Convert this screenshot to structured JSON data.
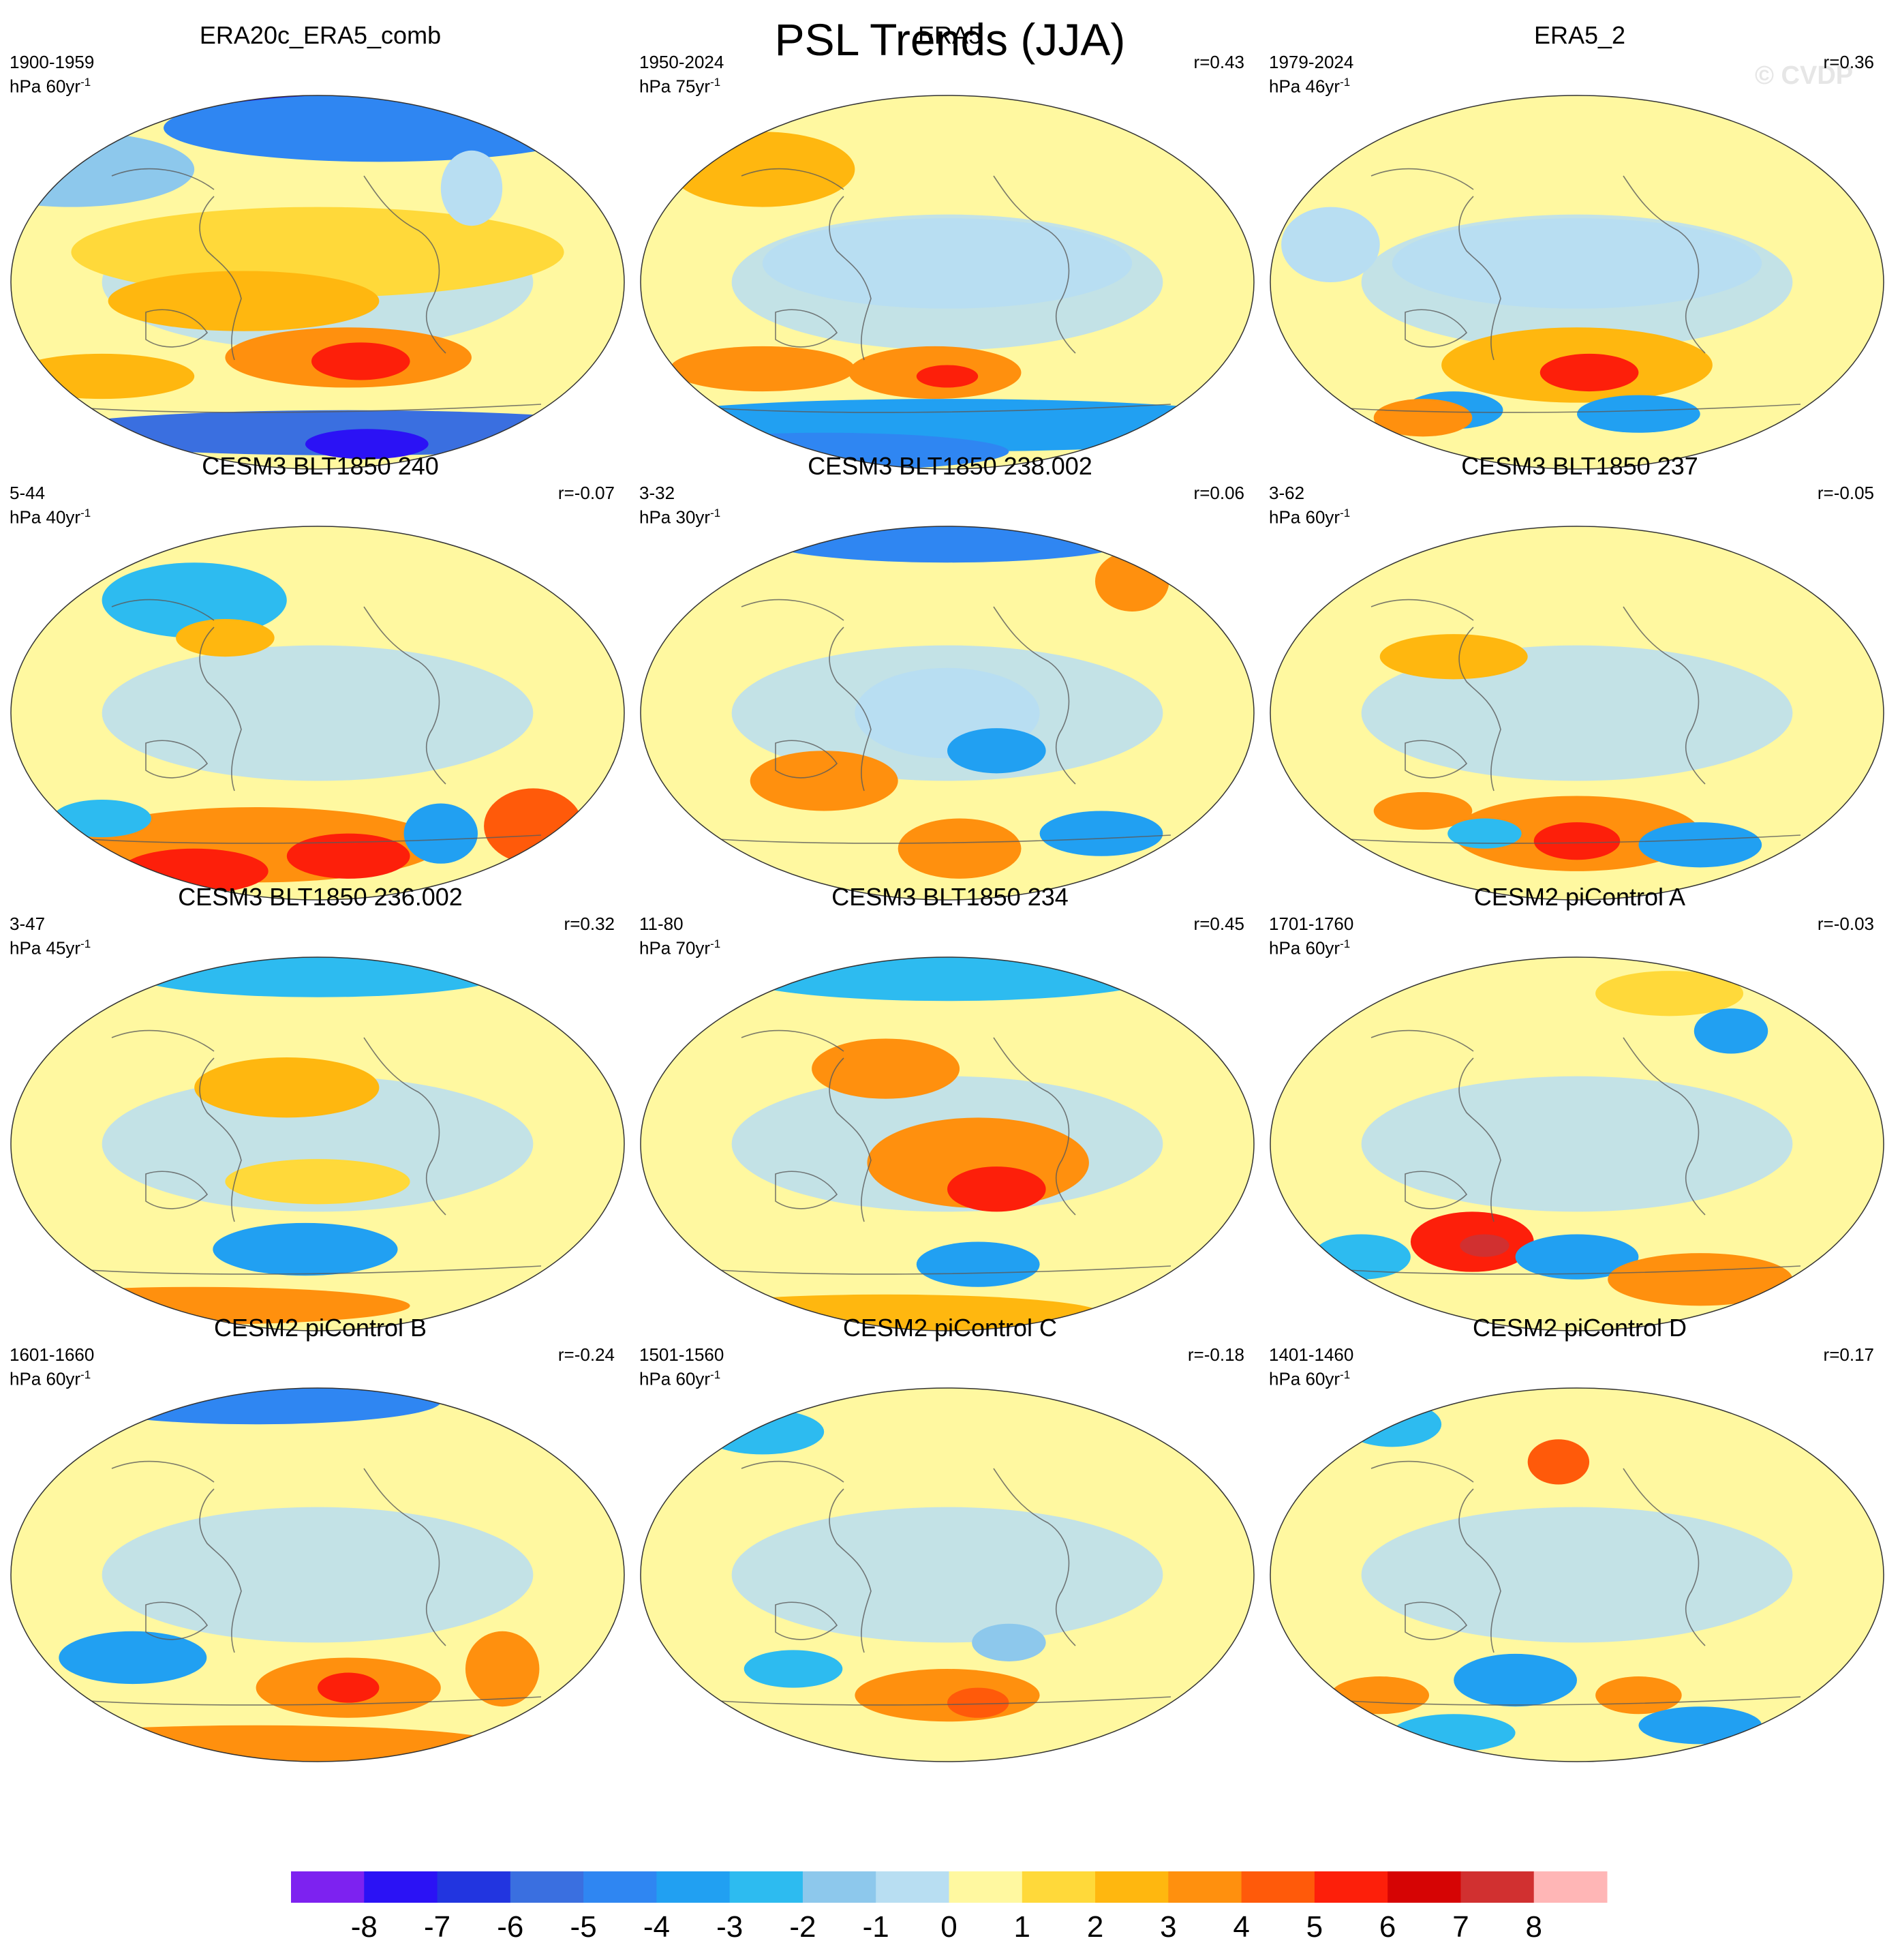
{
  "figure": {
    "title": "PSL Trends (JJA)",
    "watermark": "© CVDP"
  },
  "colorbar": {
    "tick_labels": [
      "-8",
      "-7",
      "-6",
      "-5",
      "-4",
      "-3",
      "-2",
      "-1",
      "0",
      "1",
      "2",
      "3",
      "4",
      "5",
      "6",
      "7",
      "8"
    ],
    "colors": [
      "#7d22f0",
      "#2b12f5",
      "#2235e0",
      "#3a6fe0",
      "#2f86f2",
      "#21a0f2",
      "#2dbbf0",
      "#8dc8ec",
      "#b8def2",
      "#fff8a0",
      "#ffd93a",
      "#ffb70f",
      "#ff900e",
      "#ff5a0a",
      "#fd1f0a",
      "#d60404",
      "#d13030",
      "#ffb6b6"
    ]
  },
  "chart_data": [
    {
      "type": "heatmap",
      "map": "global-trend",
      "title": "ERA20c_ERA5_comb",
      "period": "1900-1959",
      "units_label": "hPa 60yr",
      "corr": "",
      "blobs": [
        [
          0.55,
          0.04,
          0.22,
          0.07,
          -8
        ],
        [
          0.6,
          0.09,
          0.35,
          0.09,
          -5
        ],
        [
          0.1,
          0.2,
          0.2,
          0.1,
          -2
        ],
        [
          0.5,
          0.42,
          0.4,
          0.12,
          1
        ],
        [
          0.38,
          0.55,
          0.22,
          0.08,
          2
        ],
        [
          0.55,
          0.7,
          0.2,
          0.08,
          3
        ],
        [
          0.57,
          0.71,
          0.08,
          0.05,
          5
        ],
        [
          0.15,
          0.75,
          0.15,
          0.06,
          2
        ],
        [
          0.55,
          0.9,
          0.5,
          0.06,
          -6
        ],
        [
          0.58,
          0.93,
          0.1,
          0.04,
          -8
        ],
        [
          0.75,
          0.25,
          0.05,
          0.1,
          -1
        ]
      ]
    },
    {
      "type": "heatmap",
      "map": "global-trend",
      "title": "ERA5",
      "period": "1950-2024",
      "units_label": "hPa 75yr",
      "corr": "r=0.43",
      "blobs": [
        [
          0.2,
          0.2,
          0.15,
          0.1,
          2
        ],
        [
          0.5,
          0.45,
          0.3,
          0.12,
          -1
        ],
        [
          0.2,
          0.73,
          0.15,
          0.06,
          3
        ],
        [
          0.48,
          0.74,
          0.14,
          0.07,
          3
        ],
        [
          0.5,
          0.75,
          0.05,
          0.03,
          5
        ],
        [
          0.5,
          0.88,
          0.55,
          0.07,
          -4
        ],
        [
          0.3,
          0.95,
          0.3,
          0.05,
          -5
        ]
      ]
    },
    {
      "type": "heatmap",
      "map": "global-trend",
      "title": "ERA5_2",
      "period": "1979-2024",
      "units_label": "hPa 46yr",
      "corr": "r=0.36",
      "blobs": [
        [
          0.5,
          0.45,
          0.3,
          0.12,
          -1
        ],
        [
          0.5,
          0.72,
          0.22,
          0.1,
          2
        ],
        [
          0.52,
          0.74,
          0.08,
          0.05,
          5
        ],
        [
          0.3,
          0.84,
          0.08,
          0.05,
          -4
        ],
        [
          0.6,
          0.85,
          0.1,
          0.05,
          -4
        ],
        [
          0.25,
          0.86,
          0.08,
          0.05,
          3
        ],
        [
          0.1,
          0.4,
          0.08,
          0.1,
          -1
        ]
      ]
    },
    {
      "type": "heatmap",
      "map": "global-trend",
      "title": "CESM3 BLT1850 240",
      "period": "5-44",
      "units_label": "hPa 40yr",
      "corr": "r=-0.07",
      "blobs": [
        [
          0.3,
          0.2,
          0.15,
          0.1,
          -3
        ],
        [
          0.35,
          0.3,
          0.08,
          0.05,
          2
        ],
        [
          0.4,
          0.85,
          0.3,
          0.1,
          3
        ],
        [
          0.3,
          0.92,
          0.12,
          0.06,
          5
        ],
        [
          0.55,
          0.88,
          0.1,
          0.06,
          5
        ],
        [
          0.7,
          0.82,
          0.06,
          0.08,
          -4
        ],
        [
          0.85,
          0.8,
          0.08,
          0.1,
          4
        ],
        [
          0.15,
          0.78,
          0.08,
          0.05,
          -3
        ]
      ]
    },
    {
      "type": "heatmap",
      "map": "global-trend",
      "title": "CESM3 BLT1850 238.002",
      "period": "3-32",
      "units_label": "hPa 30yr",
      "corr": "r=0.06",
      "blobs": [
        [
          0.5,
          0.04,
          0.3,
          0.06,
          -5
        ],
        [
          0.8,
          0.15,
          0.06,
          0.08,
          3
        ],
        [
          0.5,
          0.5,
          0.15,
          0.12,
          -1
        ],
        [
          0.58,
          0.6,
          0.08,
          0.06,
          -4
        ],
        [
          0.3,
          0.68,
          0.12,
          0.08,
          3
        ],
        [
          0.52,
          0.86,
          0.1,
          0.08,
          3
        ],
        [
          0.75,
          0.82,
          0.1,
          0.06,
          -4
        ]
      ]
    },
    {
      "type": "heatmap",
      "map": "global-trend",
      "title": "CESM3 BLT1850 237",
      "period": "3-62",
      "units_label": "hPa 60yr",
      "corr": "r=-0.05",
      "blobs": [
        [
          0.3,
          0.35,
          0.12,
          0.06,
          2
        ],
        [
          0.5,
          0.82,
          0.2,
          0.1,
          3
        ],
        [
          0.5,
          0.84,
          0.07,
          0.05,
          5
        ],
        [
          0.7,
          0.85,
          0.1,
          0.06,
          -4
        ],
        [
          0.25,
          0.76,
          0.08,
          0.05,
          3
        ],
        [
          0.35,
          0.82,
          0.06,
          0.04,
          -3
        ]
      ]
    },
    {
      "type": "heatmap",
      "map": "global-trend",
      "title": "CESM3 BLT1850 236.002",
      "period": "3-47",
      "units_label": "hPa 45yr",
      "corr": "r=0.32",
      "blobs": [
        [
          0.5,
          0.05,
          0.3,
          0.06,
          -3
        ],
        [
          0.45,
          0.35,
          0.15,
          0.08,
          2
        ],
        [
          0.48,
          0.78,
          0.15,
          0.07,
          -4
        ],
        [
          0.3,
          0.93,
          0.35,
          0.05,
          3
        ],
        [
          0.5,
          0.6,
          0.15,
          0.06,
          1
        ]
      ]
    },
    {
      "type": "heatmap",
      "map": "global-trend",
      "title": "CESM3 BLT1850 234",
      "period": "11-80",
      "units_label": "hPa 70yr",
      "corr": "r=0.45",
      "blobs": [
        [
          0.5,
          0.05,
          0.35,
          0.07,
          -3
        ],
        [
          0.4,
          0.3,
          0.12,
          0.08,
          3
        ],
        [
          0.55,
          0.55,
          0.18,
          0.12,
          3
        ],
        [
          0.58,
          0.62,
          0.08,
          0.06,
          5
        ],
        [
          0.55,
          0.82,
          0.1,
          0.06,
          -4
        ],
        [
          0.4,
          0.95,
          0.35,
          0.05,
          2
        ]
      ]
    },
    {
      "type": "heatmap",
      "map": "global-trend",
      "title": "CESM2 piControl A",
      "period": "1701-1760",
      "units_label": "hPa 60yr",
      "corr": "r=-0.03",
      "blobs": [
        [
          0.65,
          0.1,
          0.12,
          0.06,
          1
        ],
        [
          0.75,
          0.2,
          0.06,
          0.06,
          -4
        ],
        [
          0.33,
          0.76,
          0.1,
          0.08,
          5
        ],
        [
          0.35,
          0.77,
          0.04,
          0.03,
          7
        ],
        [
          0.5,
          0.8,
          0.1,
          0.06,
          -4
        ],
        [
          0.7,
          0.86,
          0.15,
          0.07,
          3
        ],
        [
          0.15,
          0.8,
          0.08,
          0.06,
          -3
        ]
      ]
    },
    {
      "type": "heatmap",
      "map": "global-trend",
      "title": "CESM2 piControl B",
      "period": "1601-1660",
      "units_label": "hPa 60yr",
      "corr": "r=-0.24",
      "blobs": [
        [
          0.4,
          0.04,
          0.3,
          0.06,
          -5
        ],
        [
          0.2,
          0.72,
          0.12,
          0.07,
          -4
        ],
        [
          0.55,
          0.8,
          0.15,
          0.08,
          3
        ],
        [
          0.55,
          0.8,
          0.05,
          0.04,
          5
        ],
        [
          0.8,
          0.75,
          0.06,
          0.1,
          3
        ],
        [
          0.4,
          0.95,
          0.4,
          0.05,
          3
        ]
      ]
    },
    {
      "type": "heatmap",
      "map": "global-trend",
      "title": "CESM2 piControl C",
      "period": "1501-1560",
      "units_label": "hPa 60yr",
      "corr": "r=-0.18",
      "blobs": [
        [
          0.2,
          0.12,
          0.1,
          0.06,
          -3
        ],
        [
          0.5,
          0.82,
          0.15,
          0.07,
          3
        ],
        [
          0.55,
          0.84,
          0.05,
          0.04,
          4
        ],
        [
          0.25,
          0.75,
          0.08,
          0.05,
          -3
        ],
        [
          0.6,
          0.68,
          0.06,
          0.05,
          -2
        ]
      ]
    },
    {
      "type": "heatmap",
      "map": "global-trend",
      "title": "CESM2 piControl D",
      "period": "1401-1460",
      "units_label": "hPa 60yr",
      "corr": "r=0.17",
      "blobs": [
        [
          0.2,
          0.1,
          0.08,
          0.06,
          -3
        ],
        [
          0.47,
          0.2,
          0.05,
          0.06,
          4
        ],
        [
          0.4,
          0.78,
          0.1,
          0.07,
          -4
        ],
        [
          0.18,
          0.82,
          0.08,
          0.05,
          3
        ],
        [
          0.6,
          0.82,
          0.07,
          0.05,
          3
        ],
        [
          0.7,
          0.9,
          0.1,
          0.05,
          -4
        ],
        [
          0.3,
          0.92,
          0.1,
          0.05,
          -3
        ]
      ]
    }
  ]
}
